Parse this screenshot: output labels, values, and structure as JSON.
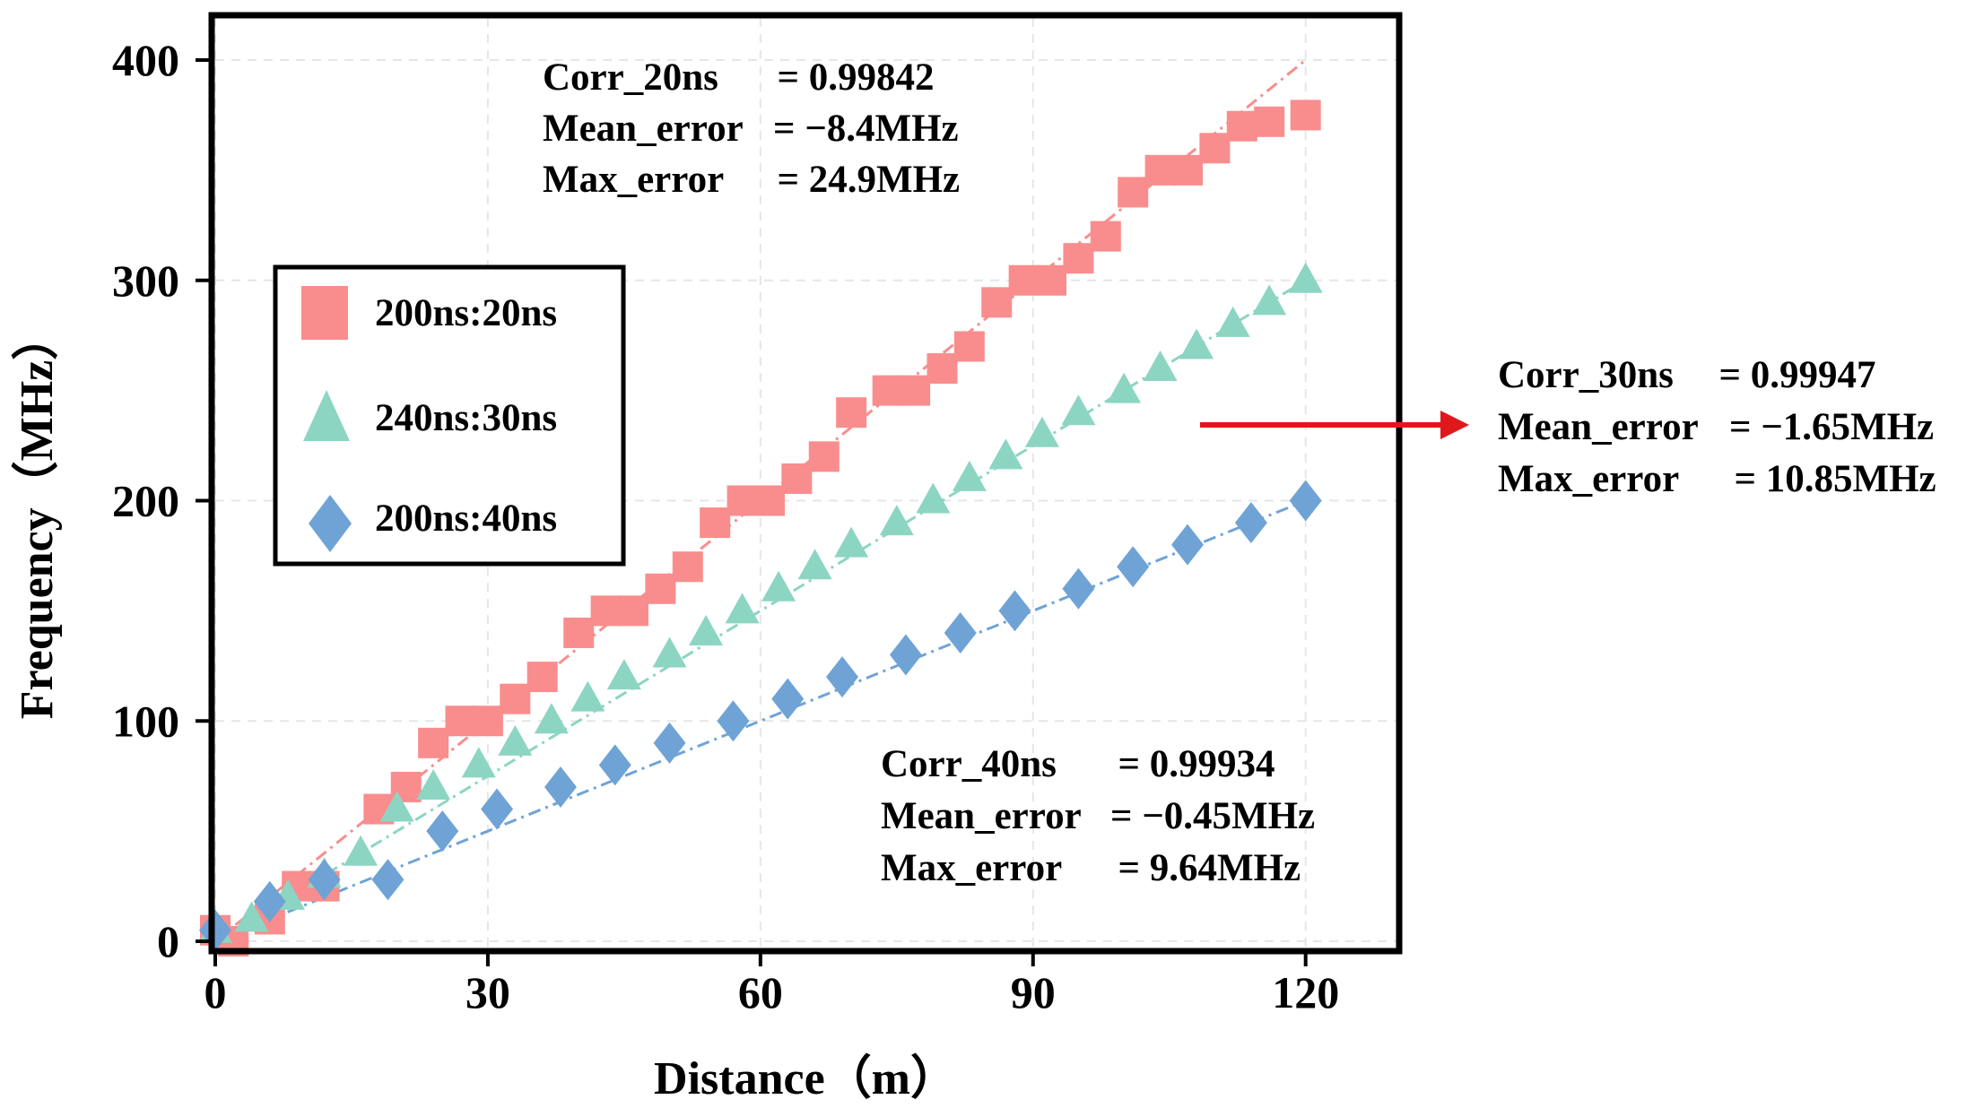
{
  "chart_data": {
    "type": "scatter",
    "xlabel": "Distance（m）",
    "ylabel": "Frequency（MHz）",
    "xlim": [
      0,
      130
    ],
    "ylim": [
      0,
      400
    ],
    "x_ticks": [
      0,
      30,
      60,
      90,
      120
    ],
    "y_ticks": [
      0,
      100,
      200,
      300,
      400
    ],
    "x_tick_labels": [
      "0",
      "30",
      "60",
      "90",
      "120"
    ],
    "y_tick_labels": [
      "0",
      "100",
      "200",
      "300",
      "400"
    ],
    "grid": true,
    "legend_position": "upper-left",
    "series": [
      {
        "name": "200ns:20ns",
        "marker": "square",
        "color": "#F98D8D",
        "fit": {
          "x": [
            0,
            120
          ],
          "y": [
            0,
            400
          ]
        },
        "x": [
          0,
          2,
          6,
          9,
          12,
          18,
          21,
          24,
          27,
          30,
          33,
          36,
          40,
          43,
          46,
          49,
          52,
          55,
          58,
          61,
          64,
          67,
          70,
          74,
          77,
          80,
          83,
          86,
          89,
          92,
          95,
          98,
          101,
          104,
          107,
          110,
          113,
          116,
          120
        ],
        "y": [
          5,
          0,
          10,
          25,
          25,
          60,
          70,
          90,
          100,
          100,
          110,
          120,
          140,
          150,
          150,
          160,
          170,
          190,
          200,
          200,
          210,
          220,
          240,
          250,
          250,
          260,
          270,
          290,
          300,
          300,
          310,
          320,
          340,
          350,
          350,
          360,
          370,
          372,
          375
        ]
      },
      {
        "name": "240ns:30ns",
        "marker": "triangle",
        "color": "#8CD5C2",
        "fit": {
          "x": [
            0,
            120
          ],
          "y": [
            0,
            300
          ]
        },
        "x": [
          0,
          4,
          8,
          12,
          16,
          20,
          24,
          29,
          33,
          37,
          41,
          45,
          50,
          54,
          58,
          62,
          66,
          70,
          75,
          79,
          83,
          87,
          91,
          95,
          100,
          104,
          108,
          112,
          116,
          120
        ],
        "y": [
          5,
          10,
          20,
          30,
          40,
          60,
          70,
          80,
          90,
          100,
          110,
          120,
          130,
          140,
          150,
          160,
          170,
          180,
          190,
          200,
          210,
          220,
          230,
          240,
          250,
          260,
          270,
          280,
          290,
          300
        ]
      },
      {
        "name": "200ns:40ns",
        "marker": "diamond",
        "color": "#6FA3D6",
        "fit": {
          "x": [
            0,
            120
          ],
          "y": [
            0,
            200
          ]
        },
        "x": [
          0,
          6,
          12,
          19,
          25,
          31,
          38,
          44,
          50,
          57,
          63,
          69,
          76,
          82,
          88,
          95,
          101,
          107,
          114,
          120
        ],
        "y": [
          5,
          18,
          28,
          28,
          50,
          60,
          70,
          80,
          90,
          100,
          110,
          120,
          130,
          140,
          150,
          160,
          170,
          180,
          190,
          200
        ]
      }
    ],
    "annotations": [
      {
        "lines": [
          {
            "key": "Corr_20ns",
            "eq": "  = 0.99842"
          },
          {
            "key": "Mean_error",
            "eq": "= −8.4MHz"
          },
          {
            "key": "Max_error",
            "eq": "  = 24.9MHz"
          }
        ]
      },
      {
        "lines": [
          {
            "key": "Corr_30ns",
            "eq": "  = 0.99947"
          },
          {
            "key": "Mean_error",
            "eq": "= −1.65MHz"
          },
          {
            "key": "Max_error",
            "eq": "  = 10.85MHz"
          }
        ]
      },
      {
        "lines": [
          {
            "key": "Corr_40ns",
            "eq": "  = 0.99934"
          },
          {
            "key": "Mean_error",
            "eq": "= −0.45MHz"
          },
          {
            "key": "Max_error",
            "eq": "  = 9.64MHz"
          }
        ]
      }
    ],
    "arrow_color": "#E0181B",
    "axis_color": "#000000",
    "grid_color": "#E6E6E6"
  }
}
